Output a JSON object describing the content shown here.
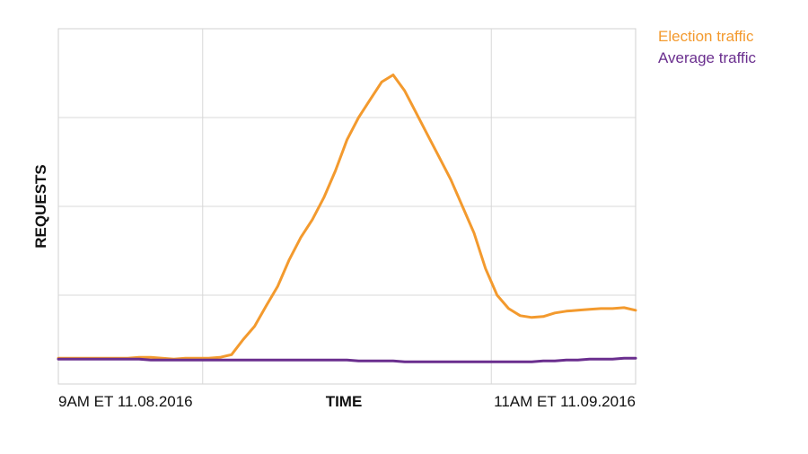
{
  "chart_data": {
    "type": "line",
    "title": "",
    "xlabel": "TIME",
    "ylabel": "REQUESTS",
    "x_tick_labels": [
      "9AM ET 11.08.2016",
      "11AM ET 11.09.2016"
    ],
    "x": [
      0,
      0.02,
      0.04,
      0.06,
      0.08,
      0.1,
      0.12,
      0.14,
      0.16,
      0.18,
      0.2,
      0.22,
      0.24,
      0.26,
      0.28,
      0.3,
      0.32,
      0.34,
      0.36,
      0.38,
      0.4,
      0.42,
      0.44,
      0.46,
      0.48,
      0.5,
      0.52,
      0.54,
      0.56,
      0.58,
      0.6,
      0.62,
      0.64,
      0.66,
      0.68,
      0.7,
      0.72,
      0.74,
      0.76,
      0.78,
      0.8,
      0.82,
      0.84,
      0.86,
      0.88,
      0.9,
      0.92,
      0.94,
      0.96,
      0.98,
      1.0
    ],
    "xlim": [
      0,
      1
    ],
    "ylim": [
      0,
      4
    ],
    "y_gridlines": [
      1,
      2,
      3
    ],
    "x_gridlines": [
      0.25,
      0.75
    ],
    "grid": true,
    "legend_position": "top-right",
    "series": [
      {
        "name": "Election traffic",
        "color": "#f39a2e",
        "values": [
          0.29,
          0.29,
          0.29,
          0.29,
          0.29,
          0.29,
          0.29,
          0.3,
          0.3,
          0.29,
          0.28,
          0.29,
          0.29,
          0.29,
          0.3,
          0.33,
          0.5,
          0.65,
          0.88,
          1.1,
          1.4,
          1.65,
          1.85,
          2.1,
          2.4,
          2.75,
          3.0,
          3.2,
          3.4,
          3.48,
          3.3,
          3.05,
          2.8,
          2.55,
          2.3,
          2.0,
          1.7,
          1.3,
          1.0,
          0.85,
          0.77,
          0.75,
          0.76,
          0.8,
          0.82,
          0.83,
          0.84,
          0.85,
          0.85,
          0.86,
          0.83
        ]
      },
      {
        "name": "Average traffic",
        "color": "#6a2e8e",
        "values": [
          0.28,
          0.28,
          0.28,
          0.28,
          0.28,
          0.28,
          0.28,
          0.28,
          0.27,
          0.27,
          0.27,
          0.27,
          0.27,
          0.27,
          0.27,
          0.27,
          0.27,
          0.27,
          0.27,
          0.27,
          0.27,
          0.27,
          0.27,
          0.27,
          0.27,
          0.27,
          0.26,
          0.26,
          0.26,
          0.26,
          0.25,
          0.25,
          0.25,
          0.25,
          0.25,
          0.25,
          0.25,
          0.25,
          0.25,
          0.25,
          0.25,
          0.25,
          0.26,
          0.26,
          0.27,
          0.27,
          0.28,
          0.28,
          0.28,
          0.29,
          0.29
        ]
      }
    ]
  }
}
